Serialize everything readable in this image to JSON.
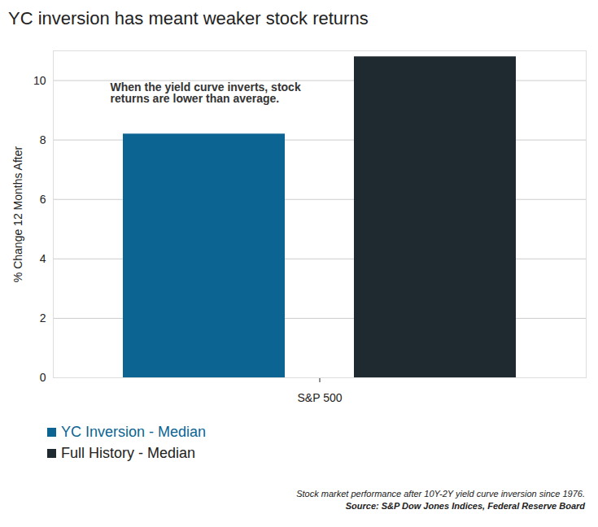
{
  "chart_data": {
    "type": "bar",
    "title": "YC inversion has meant weaker stock returns",
    "ylabel": "% Change 12 Months After",
    "annotation": "When the yield curve inverts, stock returns are lower than average.",
    "caption": "Stock market performance after 10Y-2Y yield curve inversion since 1976.",
    "source": "Source: S&P Dow Jones Indices, Federal Reserve Board",
    "categories": [
      "S&P 500"
    ],
    "series": [
      {
        "name": "YC Inversion - Median",
        "color": "#0b6491",
        "values": [
          8.2
        ]
      },
      {
        "name": "Full History - Median",
        "color": "#1f2a30",
        "values": [
          10.8
        ]
      }
    ],
    "ylim": [
      0,
      11
    ],
    "yticks": [
      0,
      2,
      4,
      6,
      8,
      10
    ],
    "grid": true,
    "legend": "bottom-left"
  }
}
